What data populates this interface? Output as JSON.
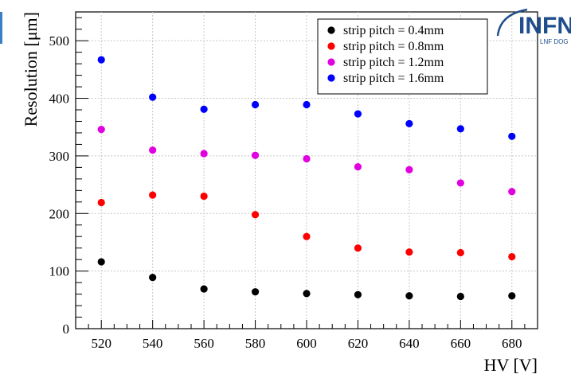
{
  "chart_data": {
    "type": "scatter",
    "title": "",
    "xlabel": "HV [V]",
    "ylabel": "Resolution [μm]",
    "xlim": [
      510,
      690
    ],
    "ylim": [
      0,
      550
    ],
    "x_ticks": [
      "520",
      "540",
      "560",
      "580",
      "600",
      "620",
      "640",
      "660",
      "680"
    ],
    "y_ticks": [
      "0",
      "100",
      "200",
      "300",
      "400",
      "500"
    ],
    "grid": true,
    "legend_position": "top-right",
    "x": [
      520,
      540,
      560,
      580,
      600,
      620,
      640,
      660,
      680
    ],
    "series": [
      {
        "name": "strip pitch = 0.4mm",
        "color": "#000000",
        "values": [
          116,
          89,
          69,
          64,
          61,
          59,
          57,
          56,
          57
        ]
      },
      {
        "name": "strip pitch = 0.8mm",
        "color": "#ff0000",
        "values": [
          219,
          232,
          230,
          198,
          160,
          140,
          133,
          132,
          125
        ]
      },
      {
        "name": "strip pitch = 1.2mm",
        "color": "#e000e0",
        "values": [
          346,
          310,
          304,
          301,
          295,
          281,
          276,
          253,
          238
        ]
      },
      {
        "name": "strip pitch = 1.6mm",
        "color": "#0000ff",
        "values": [
          467,
          402,
          381,
          389,
          389,
          373,
          356,
          347,
          334
        ]
      }
    ]
  },
  "logo": {
    "text": "INFN",
    "subtext": "LNF DOG",
    "color": "#1f4e8c"
  }
}
